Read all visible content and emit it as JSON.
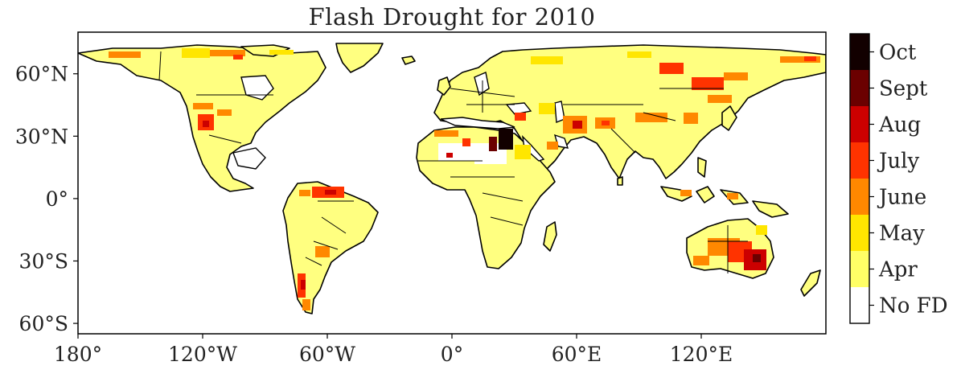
{
  "title": "Flash Drought for 2010",
  "map": {
    "projection": "PlateCarree",
    "lon_range": [
      -180,
      180
    ],
    "lat_range": [
      -65,
      80
    ],
    "x_ticks": [
      {
        "value": -180,
        "label": "180°"
      },
      {
        "value": -120,
        "label": "120°W"
      },
      {
        "value": -60,
        "label": "60°W"
      },
      {
        "value": 0,
        "label": "0°"
      },
      {
        "value": 60,
        "label": "60°E"
      },
      {
        "value": 120,
        "label": "120°E"
      }
    ],
    "y_ticks": [
      {
        "value": 60,
        "label": "60°N"
      },
      {
        "value": 30,
        "label": "30°N"
      },
      {
        "value": 0,
        "label": "0°"
      },
      {
        "value": -30,
        "label": "30°S"
      },
      {
        "value": -60,
        "label": "60°S"
      }
    ],
    "land_color": "#ffff80",
    "coast_color": "#000000"
  },
  "colorbar": {
    "categories": [
      {
        "label": "No FD",
        "color": "#ffffff"
      },
      {
        "label": "Apr",
        "color": "#ffff66"
      },
      {
        "label": "May",
        "color": "#ffe600"
      },
      {
        "label": "June",
        "color": "#ff8800"
      },
      {
        "label": "July",
        "color": "#ff3300"
      },
      {
        "label": "Aug",
        "color": "#cc0000"
      },
      {
        "label": "Sept",
        "color": "#6b0000"
      },
      {
        "label": "Oct",
        "color": "#120000"
      }
    ]
  }
}
